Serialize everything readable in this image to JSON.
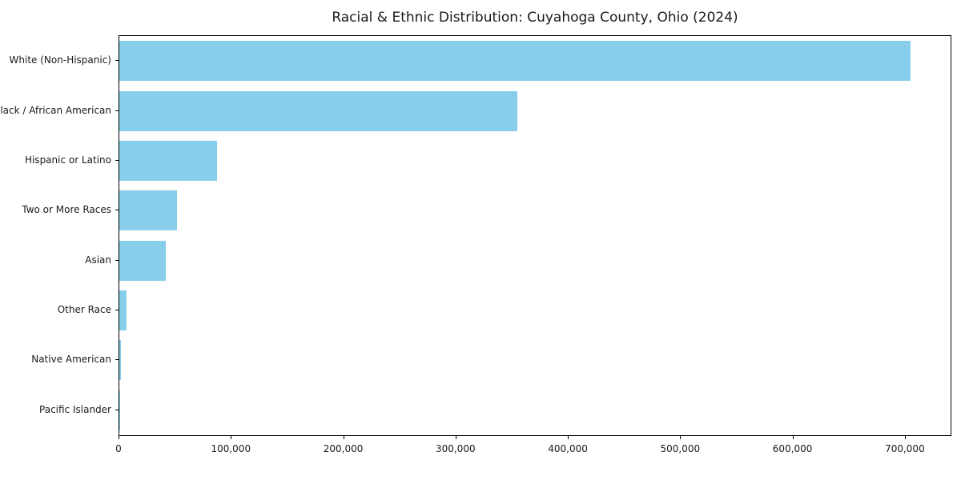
{
  "title": "Racial & Ethnic Distribution: Cuyahoga County, Ohio (2024)",
  "chart_data": {
    "type": "bar",
    "orientation": "horizontal",
    "title": "Racial & Ethnic Distribution: Cuyahoga County, Ohio (2024)",
    "categories": [
      "White (Non-Hispanic)",
      "Black / African American",
      "Hispanic or Latino",
      "Two or More Races",
      "Asian",
      "Other Race",
      "Native American",
      "Pacific Islander"
    ],
    "values": [
      704000,
      354000,
      87000,
      51000,
      41000,
      6400,
      1500,
      400
    ],
    "bar_color": "#87CEEB",
    "xlabel": "",
    "ylabel": "",
    "xlim": [
      0,
      740000
    ],
    "xticks": [
      0,
      100000,
      200000,
      300000,
      400000,
      500000,
      600000,
      700000
    ],
    "xtick_labels": [
      "0",
      "100,000",
      "200,000",
      "300,000",
      "400,000",
      "500,000",
      "600,000",
      "700,000"
    ],
    "grid": false,
    "legend": false,
    "bar_fraction": 0.8
  }
}
